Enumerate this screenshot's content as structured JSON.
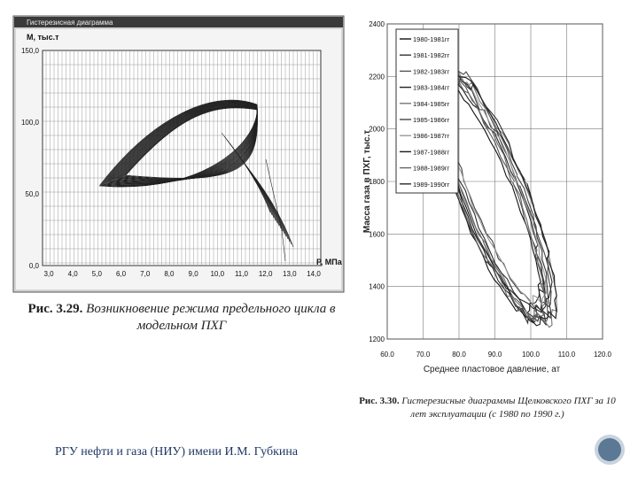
{
  "figure1": {
    "window_title": "Гистерезисная диаграмма",
    "y_label": "М, тыс.т",
    "x_label": "Р, МПа",
    "y_ticks": [
      "150,0",
      "100,0",
      "50,0",
      "0,0"
    ],
    "x_ticks": [
      "3,0",
      "4,0",
      "5,0",
      "6,0",
      "7,0",
      "8,0",
      "9,0",
      "10,0",
      "11,0",
      "12,0",
      "13,0",
      "14,0"
    ],
    "caption_number": "Рис. 3.29.",
    "caption_text": "Возникновение режима предельного цикла в модельном ПХГ"
  },
  "figure2": {
    "legend": [
      "1980-1981гг",
      "1981-1982гг",
      "1982-1983гг",
      "1983-1984гг",
      "1984-1985гг",
      "1985-1986гг",
      "1986-1987гг",
      "1987-1988гг",
      "1988-1989гг",
      "1989-1990гг"
    ],
    "y_ticks": [
      "2400",
      "2200",
      "2000",
      "1800",
      "1600",
      "1400",
      "1200"
    ],
    "x_ticks": [
      "60.0",
      "70.0",
      "80.0",
      "90.0",
      "100.0",
      "110.0",
      "120.0"
    ],
    "y_label": "Масса газа в ПХГ, тыс.т",
    "x_label": "Среднее пластовое давление, ат",
    "caption_number": "Рис. 3.30.",
    "caption_text": "Гистерезисные диаграммы Щелковского ПХГ за 10 лет эксплуатации (с 1980 по 1990 г.)"
  },
  "footer": "РГУ нефти и газа (НИУ) имени И.М. Губкина"
}
